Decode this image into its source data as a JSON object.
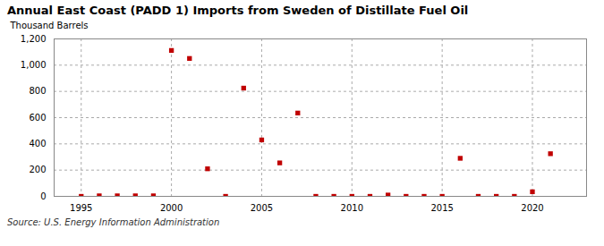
{
  "chart_data": {
    "type": "scatter",
    "title": "Annual East Coast (PADD 1) Imports from Sweden of Distillate Fuel Oil",
    "ylabel": "Thousand Barrels",
    "source": "Source: U.S. Energy Information Administration",
    "x": [
      1995,
      1996,
      1997,
      1998,
      1999,
      2000,
      2001,
      2002,
      2003,
      2004,
      2005,
      2006,
      2007,
      2008,
      2009,
      2010,
      2011,
      2012,
      2013,
      2014,
      2015,
      2016,
      2017,
      2018,
      2019,
      2020,
      2021
    ],
    "values": [
      0,
      4,
      4,
      4,
      4,
      1112,
      1051,
      210,
      0,
      825,
      430,
      255,
      635,
      0,
      0,
      0,
      0,
      10,
      0,
      0,
      0,
      290,
      0,
      0,
      0,
      35,
      325
    ],
    "color": "#c00000",
    "marker": "square",
    "xlim": [
      1993.5,
      2023
    ],
    "ylim": [
      0,
      1200
    ],
    "xticks": [
      1995,
      2000,
      2005,
      2010,
      2015,
      2020
    ],
    "yticks": [
      0,
      200,
      400,
      600,
      800,
      {
        "value": 1000,
        "label": "1,000"
      },
      {
        "value": 1200,
        "label": "1,200"
      }
    ],
    "grid": true
  }
}
